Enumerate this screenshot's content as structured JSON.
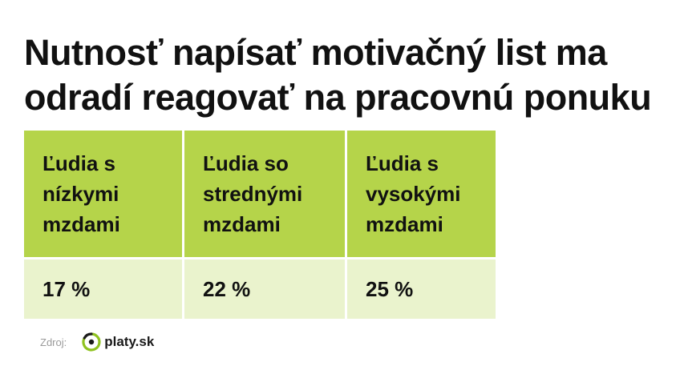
{
  "title_lines": [
    "Nutnosť napísať motivačný list ma",
    "odradí reagovať na pracovnú ponuku"
  ],
  "chart_data": {
    "type": "table",
    "categories": [
      "Ľudia s\nnízkymi\nmzdami",
      "Ľudia so\nstrednými\nmzdami",
      "Ľudia s\nvysokými\nmzdami"
    ],
    "values": [
      "17 %",
      "22 %",
      "25 %"
    ]
  },
  "footer": {
    "source_label": "Zdroj:",
    "logo_text": "platy.sk",
    "logo_icon": "platy-sk-logo-icon"
  },
  "colors": {
    "header_bg": "#b5d44a",
    "value_bg": "#eaf3cd",
    "logo_green": "#8fc21f",
    "logo_dark": "#1a1a1a"
  }
}
